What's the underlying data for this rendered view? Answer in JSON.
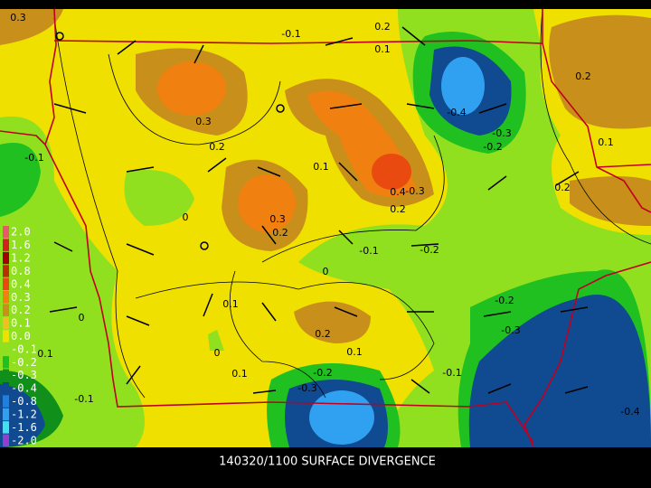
{
  "caption": "140320/1100 SURFACE DIVERGENCE",
  "legend": {
    "items": [
      {
        "label": "2.0",
        "color": "#e85a6a"
      },
      {
        "label": "1.6",
        "color": "#d02020"
      },
      {
        "label": "1.2",
        "color": "#a00000"
      },
      {
        "label": "0.8",
        "color": "#b83000"
      },
      {
        "label": "0.4",
        "color": "#e84a10"
      },
      {
        "label": "0.3",
        "color": "#f08010"
      },
      {
        "label": "0.2",
        "color": "#c8901a"
      },
      {
        "label": "0.1",
        "color": "#f0c020"
      },
      {
        "label": "0.0",
        "color": "#f0e000"
      },
      {
        "label": "-0.1",
        "color": "#90e020"
      },
      {
        "label": "-0.2",
        "color": "#20c020"
      },
      {
        "label": "-0.3",
        "color": "#10901a"
      },
      {
        "label": "-0.4",
        "color": "#104a90"
      },
      {
        "label": "-0.8",
        "color": "#2080e0"
      },
      {
        "label": "-1.2",
        "color": "#30a0f0"
      },
      {
        "label": "-1.6",
        "color": "#40e0f0"
      },
      {
        "label": "-2.0",
        "color": "#9040d0"
      }
    ]
  },
  "contour_labels": [
    "0.3",
    "0.2",
    "-0.1",
    "0.1",
    "0.2",
    "-0.4",
    "0.3",
    "-0.3",
    "-0.1",
    "0.2",
    "-0.2",
    "0.1",
    "0.1",
    "0.4",
    "-0.3",
    "0.2",
    "0.2",
    "0",
    "0.3",
    "0.2",
    "-0.1",
    "-0.2",
    "0",
    "0.1",
    "-0.2",
    "0",
    "0.2",
    "-0.3",
    "0.1",
    "0",
    "0.1",
    "0.1",
    "-0.2",
    "-0.1",
    "-0.3",
    "-0.1",
    "-0.4"
  ]
}
